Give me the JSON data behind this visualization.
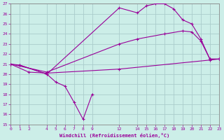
{
  "bg_color": "#cceee8",
  "grid_color": "#aacccc",
  "line_color": "#990099",
  "xlim": [
    0,
    23
  ],
  "ylim": [
    15,
    27
  ],
  "xtick_positions": [
    0,
    1,
    2,
    4,
    5,
    6,
    7,
    8,
    9,
    12,
    14,
    15,
    16,
    17,
    18,
    19,
    20,
    21,
    22,
    23
  ],
  "xtick_labels": [
    "0",
    "1",
    "2",
    "4",
    "5",
    "6",
    "7",
    "8",
    "9",
    "12",
    "14",
    "15",
    "16",
    "17",
    "18",
    "19",
    "20",
    "21",
    "22",
    "23"
  ],
  "ytick_positions": [
    15,
    16,
    17,
    18,
    19,
    20,
    21,
    22,
    23,
    24,
    25,
    26,
    27
  ],
  "ytick_labels": [
    "15",
    "16",
    "17",
    "18",
    "19",
    "20",
    "21",
    "22",
    "23",
    "24",
    "25",
    "26",
    "27"
  ],
  "xlabel": "Windchill (Refroidissement éolien,°C)",
  "lines": [
    {
      "x": [
        0,
        1,
        4,
        12,
        14,
        15,
        16,
        17,
        18,
        19,
        20,
        21,
        22,
        23
      ],
      "y": [
        21,
        20.9,
        20.0,
        26.6,
        26.1,
        26.8,
        27.0,
        27.0,
        26.5,
        25.4,
        25.0,
        23.5,
        21.5,
        21.5
      ]
    },
    {
      "x": [
        0,
        4,
        12,
        14,
        17,
        19,
        20,
        21,
        22,
        23
      ],
      "y": [
        21,
        20.2,
        23.0,
        23.5,
        24.0,
        24.3,
        24.2,
        23.3,
        21.5,
        21.5
      ]
    },
    {
      "x": [
        0,
        2,
        4,
        12,
        22,
        23
      ],
      "y": [
        21,
        20.2,
        20.1,
        20.5,
        21.4,
        21.5
      ]
    },
    {
      "x": [
        1,
        4,
        5,
        6,
        7,
        8,
        9
      ],
      "y": [
        20.9,
        20.0,
        19.2,
        18.8,
        17.2,
        15.5,
        18.0
      ]
    }
  ]
}
